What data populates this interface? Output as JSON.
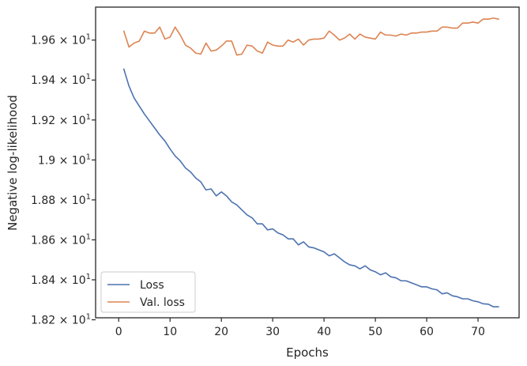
{
  "chart_data": {
    "type": "line",
    "title": "",
    "xlabel": "Epochs",
    "ylabel": "Negative log-likelihood",
    "xlim": [
      -4.5,
      78
    ],
    "ylim": [
      18.21,
      19.765
    ],
    "grid": false,
    "legend_position": "lower-left",
    "x_ticks": [
      {
        "value": 0,
        "label": "0"
      },
      {
        "value": 10,
        "label": "10"
      },
      {
        "value": 20,
        "label": "20"
      },
      {
        "value": 30,
        "label": "30"
      },
      {
        "value": 40,
        "label": "40"
      },
      {
        "value": 50,
        "label": "50"
      },
      {
        "value": 60,
        "label": "60"
      },
      {
        "value": 70,
        "label": "70"
      }
    ],
    "y_ticks": [
      {
        "value": 18.2,
        "mantissa": "1.82"
      },
      {
        "value": 18.4,
        "mantissa": "1.84"
      },
      {
        "value": 18.6,
        "mantissa": "1.86"
      },
      {
        "value": 18.8,
        "mantissa": "1.88"
      },
      {
        "value": 19.0,
        "mantissa": "1.9"
      },
      {
        "value": 19.2,
        "mantissa": "1.92"
      },
      {
        "value": 19.4,
        "mantissa": "1.94"
      },
      {
        "value": 19.6,
        "mantissa": "1.96"
      }
    ],
    "y_tick_base": "× 10",
    "y_tick_exponent": "1",
    "series": [
      {
        "name": "Loss",
        "color": "#4c72b0",
        "x": [
          1,
          2,
          3,
          4,
          5,
          6,
          7,
          8,
          9,
          10,
          11,
          12,
          13,
          14,
          15,
          16,
          17,
          18,
          19,
          20,
          21,
          22,
          23,
          24,
          25,
          26,
          27,
          28,
          29,
          30,
          31,
          32,
          33,
          34,
          35,
          36,
          37,
          38,
          39,
          40,
          41,
          42,
          43,
          44,
          45,
          46,
          47,
          48,
          49,
          50,
          51,
          52,
          53,
          54,
          55,
          56,
          57,
          58,
          59,
          60,
          61,
          62,
          63,
          64,
          65,
          66,
          67,
          68,
          69,
          70,
          71,
          72,
          73,
          74
        ],
        "values": [
          19.455,
          19.37,
          19.31,
          19.27,
          19.23,
          19.195,
          19.16,
          19.125,
          19.095,
          19.055,
          19.02,
          18.995,
          18.96,
          18.94,
          18.91,
          18.89,
          18.85,
          18.855,
          18.82,
          18.84,
          18.82,
          18.79,
          18.775,
          18.75,
          18.725,
          18.71,
          18.68,
          18.68,
          18.65,
          18.655,
          18.635,
          18.625,
          18.605,
          18.605,
          18.575,
          18.59,
          18.565,
          18.56,
          18.55,
          18.54,
          18.52,
          18.53,
          18.51,
          18.49,
          18.475,
          18.47,
          18.455,
          18.47,
          18.45,
          18.44,
          18.425,
          18.435,
          18.415,
          18.41,
          18.395,
          18.395,
          18.385,
          18.375,
          18.365,
          18.365,
          18.355,
          18.35,
          18.33,
          18.335,
          18.32,
          18.315,
          18.305,
          18.305,
          18.295,
          18.29,
          18.28,
          18.278,
          18.265,
          18.265
        ]
      },
      {
        "name": "Val. loss",
        "color": "#dd8452",
        "x": [
          1,
          2,
          3,
          4,
          5,
          6,
          7,
          8,
          9,
          10,
          11,
          12,
          13,
          14,
          15,
          16,
          17,
          18,
          19,
          20,
          21,
          22,
          23,
          24,
          25,
          26,
          27,
          28,
          29,
          30,
          31,
          32,
          33,
          34,
          35,
          36,
          37,
          38,
          39,
          40,
          41,
          42,
          43,
          44,
          45,
          46,
          47,
          48,
          49,
          50,
          51,
          52,
          53,
          54,
          55,
          56,
          57,
          58,
          59,
          60,
          61,
          62,
          63,
          64,
          65,
          66,
          67,
          68,
          69,
          70,
          71,
          72,
          73,
          74
        ],
        "values": [
          19.645,
          19.565,
          19.585,
          19.595,
          19.645,
          19.635,
          19.635,
          19.665,
          19.605,
          19.615,
          19.665,
          19.625,
          19.575,
          19.56,
          19.535,
          19.53,
          19.585,
          19.545,
          19.55,
          19.57,
          19.595,
          19.595,
          19.525,
          19.53,
          19.575,
          19.57,
          19.545,
          19.535,
          19.59,
          19.575,
          19.57,
          19.57,
          19.6,
          19.59,
          19.605,
          19.575,
          19.6,
          19.605,
          19.605,
          19.61,
          19.645,
          19.625,
          19.6,
          19.61,
          19.63,
          19.605,
          19.63,
          19.615,
          19.61,
          19.605,
          19.64,
          19.625,
          19.625,
          19.62,
          19.63,
          19.625,
          19.635,
          19.635,
          19.64,
          19.64,
          19.645,
          19.645,
          19.665,
          19.665,
          19.66,
          19.66,
          19.685,
          19.685,
          19.69,
          19.685,
          19.705,
          19.705,
          19.71,
          19.705
        ]
      }
    ]
  }
}
